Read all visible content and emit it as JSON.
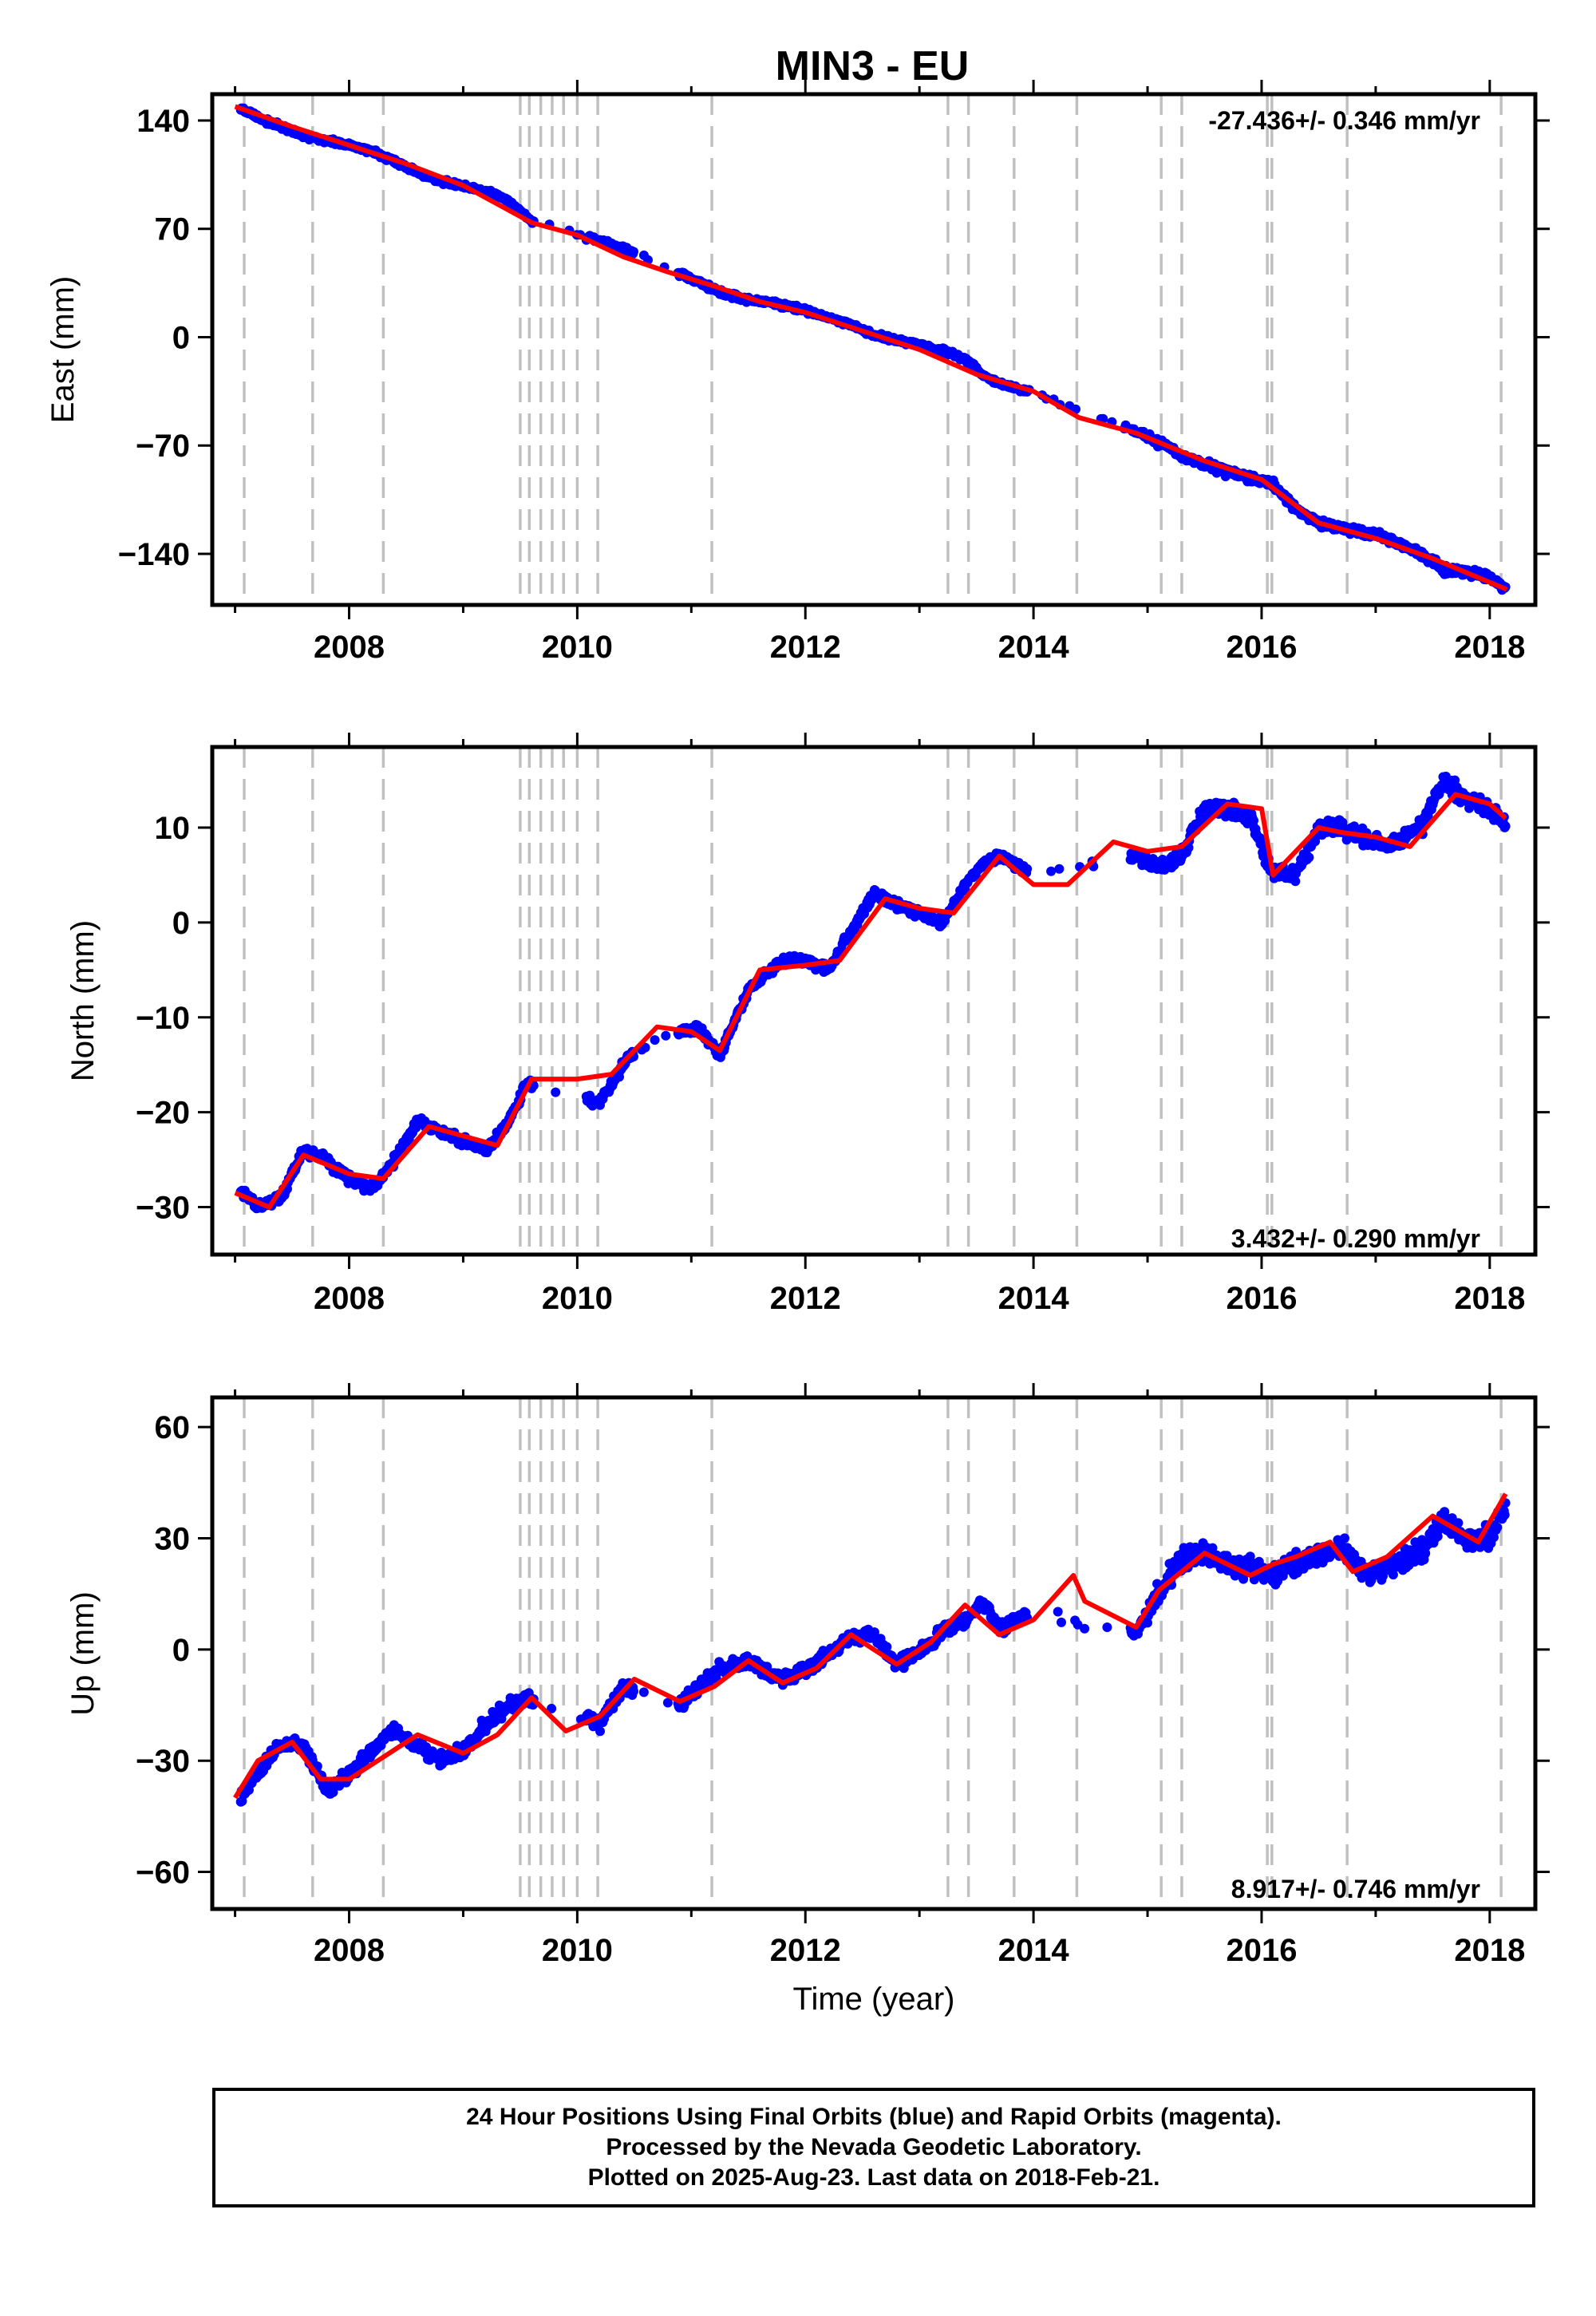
{
  "chart_data": [
    {
      "type": "scatter",
      "title": "MIN3 - EU",
      "ylabel": "East (mm)",
      "xlabel": "",
      "rate_label": "-27.436+/- 0.346 mm/yr",
      "xlim": [
        2006.8,
        2018.4
      ],
      "ylim": [
        -173,
        157
      ],
      "xticks": [
        "2008",
        "2010",
        "2012",
        "2014",
        "2016",
        "2018"
      ],
      "yticks": [
        140,
        70,
        0,
        -70,
        -140
      ],
      "grid": false,
      "colors": {
        "data": "#0000ff",
        "model": "#ff0000",
        "events": "#c0c0c0"
      },
      "series": [
        {
          "name": "Final Orbits",
          "x": [
            2007.05,
            2007.2,
            2007.4,
            2007.6,
            2007.8,
            2008.0,
            2008.2,
            2008.4,
            2008.6,
            2008.8,
            2009.0,
            2009.2,
            2009.4,
            2009.58,
            2010.2,
            2010.45,
            2011.05,
            2011.25,
            2011.5,
            2011.8,
            2012.0,
            2012.2,
            2012.4,
            2012.6,
            2012.8,
            2013.0,
            2013.2,
            2013.4,
            2013.55,
            2013.7,
            2014.0,
            2014.9,
            2015.1,
            2015.3,
            2015.5,
            2015.7,
            2015.9,
            2016.1,
            2016.3,
            2016.5,
            2016.7,
            2016.9,
            2017.1,
            2017.4,
            2017.6,
            2017.8,
            2018.0,
            2018.14
          ],
          "y": [
            148,
            142,
            136,
            130,
            127,
            124,
            120,
            114,
            106,
            101,
            98,
            94,
            88,
            76,
            62,
            56,
            36,
            29,
            24,
            21,
            17,
            13,
            8,
            1,
            -2,
            -5,
            -9,
            -14,
            -24,
            -30,
            -36,
            -61,
            -68,
            -77,
            -82,
            -87,
            -91,
            -95,
            -111,
            -120,
            -124,
            -126,
            -130,
            -140,
            -150,
            -152,
            -155,
            -163
          ]
        },
        {
          "name": "Model",
          "x": [
            2007.0,
            2007.5,
            2008.0,
            2008.5,
            2009.0,
            2009.6,
            2010.0,
            2010.4,
            2010.8,
            2011.2,
            2011.6,
            2012.0,
            2012.5,
            2013.0,
            2013.5,
            2014.0,
            2014.4,
            2014.9,
            2015.5,
            2016.0,
            2016.5,
            2017.0,
            2017.5,
            2018.15
          ],
          "y": [
            149,
            136,
            124,
            112,
            98,
            74,
            66,
            52,
            42,
            33,
            23,
            16,
            4,
            -8,
            -24,
            -35,
            -52,
            -62,
            -80,
            -92,
            -120,
            -130,
            -143,
            -163
          ]
        }
      ]
    },
    {
      "type": "scatter",
      "title": "",
      "ylabel": "North (mm)",
      "xlabel": "",
      "rate_label": "3.432+/- 0.290 mm/yr",
      "xlim": [
        2006.8,
        2018.4
      ],
      "ylim": [
        -35,
        18.5
      ],
      "xticks": [
        "2008",
        "2010",
        "2012",
        "2014",
        "2016",
        "2018"
      ],
      "yticks": [
        10,
        0,
        -10,
        -20,
        -30
      ],
      "grid": false,
      "colors": {
        "data": "#0000ff",
        "model": "#ff0000",
        "events": "#c0c0c0"
      },
      "series": [
        {
          "name": "Final Orbits",
          "x": [
            2007.05,
            2007.2,
            2007.4,
            2007.6,
            2007.8,
            2008.0,
            2008.2,
            2008.4,
            2008.6,
            2008.8,
            2009.0,
            2009.2,
            2009.4,
            2009.55,
            2010.2,
            2010.45,
            2011.05,
            2011.25,
            2011.5,
            2011.8,
            2012.0,
            2012.2,
            2012.4,
            2012.6,
            2012.8,
            2013.0,
            2013.2,
            2013.4,
            2013.55,
            2013.7,
            2014.0,
            2014.9,
            2015.1,
            2015.3,
            2015.5,
            2015.7,
            2015.9,
            2016.1,
            2016.3,
            2016.5,
            2016.7,
            2016.9,
            2017.1,
            2017.4,
            2017.6,
            2017.8,
            2018.0,
            2018.14
          ],
          "y": [
            -28,
            -30,
            -29,
            -24,
            -25,
            -27,
            -28,
            -25,
            -21,
            -22,
            -23,
            -24,
            -21,
            -17,
            -19,
            -14,
            -11,
            -14,
            -7,
            -4,
            -4,
            -5,
            -1,
            3,
            2,
            1,
            0,
            4,
            6,
            7,
            5,
            7,
            6,
            7,
            12,
            12,
            11,
            5,
            5,
            10,
            10,
            9,
            8,
            10,
            15,
            13,
            12,
            10
          ]
        },
        {
          "name": "Model",
          "x": [
            2007.0,
            2007.3,
            2007.6,
            2008.0,
            2008.3,
            2008.7,
            2009.0,
            2009.3,
            2009.6,
            2010.0,
            2010.3,
            2010.7,
            2011.0,
            2011.25,
            2011.6,
            2012.0,
            2012.3,
            2012.7,
            2013.0,
            2013.3,
            2013.7,
            2014.0,
            2014.3,
            2014.7,
            2015.0,
            2015.3,
            2015.7,
            2016.0,
            2016.1,
            2016.5,
            2016.7,
            2017.0,
            2017.3,
            2017.7,
            2018.0,
            2018.14
          ],
          "y": [
            -28.5,
            -30,
            -24.5,
            -26.5,
            -27,
            -21.5,
            -22.5,
            -23.5,
            -16.5,
            -16.5,
            -16,
            -11,
            -11.5,
            -13.5,
            -5,
            -4.5,
            -4,
            2.5,
            1.5,
            1,
            7,
            4,
            4,
            8.5,
            7.5,
            8,
            12.5,
            12,
            5,
            10,
            9.5,
            9,
            8,
            13.5,
            12.5,
            11
          ]
        }
      ]
    },
    {
      "type": "scatter",
      "title": "",
      "ylabel": "Up (mm)",
      "xlabel": "Time (year)",
      "rate_label": "8.917+/- 0.746 mm/yr",
      "xlim": [
        2006.8,
        2018.4
      ],
      "ylim": [
        -70,
        68
      ],
      "xticks": [
        "2008",
        "2010",
        "2012",
        "2014",
        "2016",
        "2018"
      ],
      "yticks": [
        60,
        30,
        0,
        -30,
        -60
      ],
      "grid": false,
      "colors": {
        "data": "#0000ff",
        "model": "#ff0000",
        "events": "#c0c0c0"
      },
      "series": [
        {
          "name": "Final Orbits",
          "x": [
            2007.05,
            2007.2,
            2007.4,
            2007.6,
            2007.8,
            2008.0,
            2008.2,
            2008.4,
            2008.6,
            2008.8,
            2009.0,
            2009.2,
            2009.4,
            2009.55,
            2010.2,
            2010.4,
            2010.9,
            2011.25,
            2011.5,
            2011.8,
            2012.0,
            2012.2,
            2012.4,
            2012.6,
            2012.8,
            2013.0,
            2013.2,
            2013.4,
            2013.55,
            2013.7,
            2014.0,
            2014.9,
            2015.1,
            2015.3,
            2015.5,
            2015.7,
            2015.9,
            2016.1,
            2016.3,
            2016.5,
            2016.7,
            2016.9,
            2017.1,
            2017.4,
            2017.6,
            2017.8,
            2018.0,
            2018.14
          ],
          "y": [
            -40,
            -33,
            -26,
            -26,
            -38,
            -34,
            -27,
            -22,
            -26,
            -30,
            -27,
            -20,
            -15,
            -13,
            -20,
            -10,
            -15,
            -5,
            -3,
            -8,
            -6,
            -1,
            3,
            4,
            -4,
            -1,
            5,
            8,
            13,
            6,
            9,
            5,
            15,
            25,
            26,
            22,
            22,
            20,
            23,
            25,
            28,
            20,
            22,
            27,
            35,
            30,
            30,
            38
          ]
        },
        {
          "name": "Model",
          "x": [
            2007.0,
            2007.2,
            2007.5,
            2007.75,
            2008.0,
            2008.3,
            2008.6,
            2009.0,
            2009.3,
            2009.6,
            2009.9,
            2010.2,
            2010.5,
            2010.9,
            2011.2,
            2011.5,
            2011.8,
            2012.1,
            2012.4,
            2012.8,
            2013.1,
            2013.4,
            2013.7,
            2014.0,
            2014.35,
            2014.45,
            2014.9,
            2015.1,
            2015.5,
            2015.9,
            2016.1,
            2016.3,
            2016.6,
            2016.8,
            2017.1,
            2017.5,
            2017.9,
            2018.14
          ],
          "y": [
            -40,
            -30,
            -25,
            -35,
            -35,
            -29,
            -23,
            -28,
            -23,
            -13,
            -22,
            -18,
            -8,
            -14,
            -10,
            -3,
            -9,
            -5,
            4,
            -4,
            2,
            12,
            4,
            8,
            20,
            13,
            6,
            16,
            26,
            20,
            23,
            25,
            29,
            21,
            25,
            36,
            29,
            42
          ]
        }
      ]
    }
  ],
  "footer": {
    "line1": "24 Hour Positions Using Final Orbits (blue) and Rapid Orbits (magenta).",
    "line2": "Processed by the Nevada Geodetic Laboratory.",
    "line3": "Plotted on 2025-Aug-23. Last data on 2018-Feb-21."
  }
}
